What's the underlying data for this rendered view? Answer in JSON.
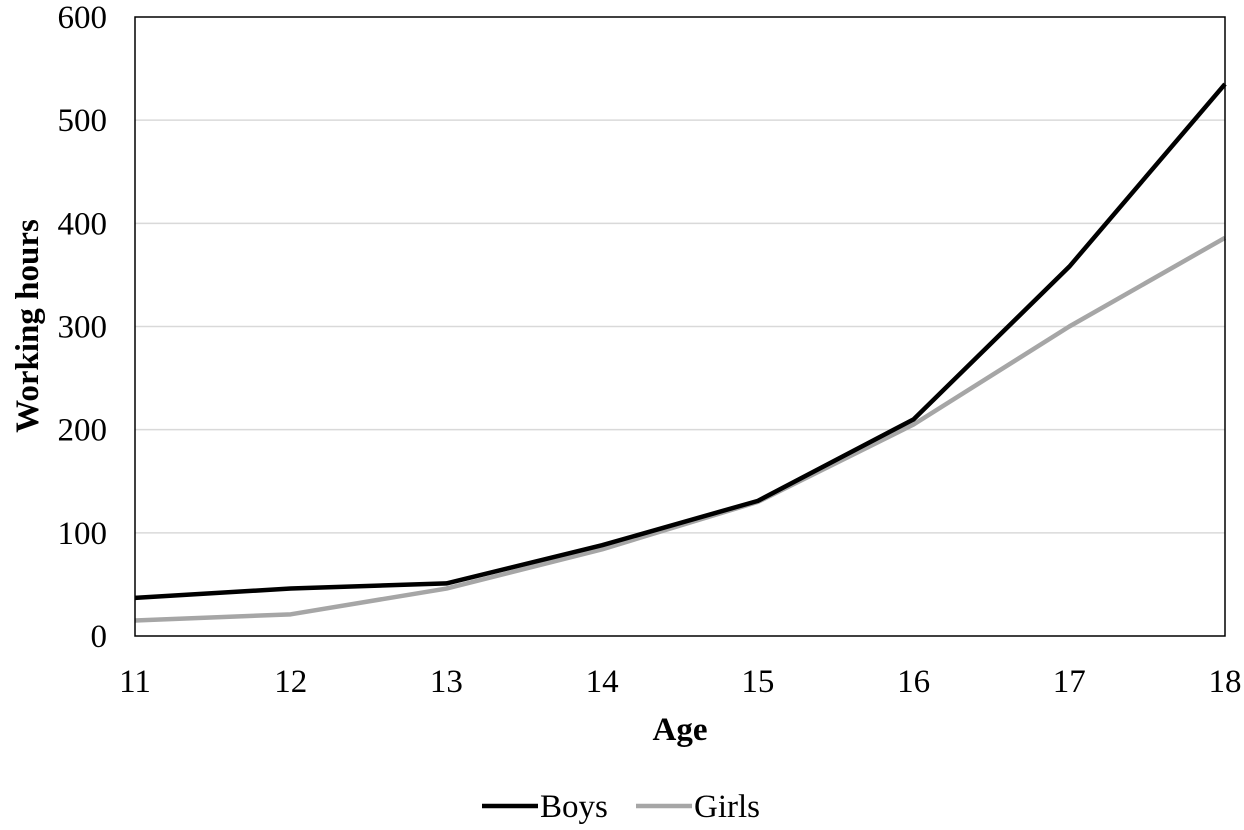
{
  "chart_data": {
    "type": "line",
    "x": [
      11,
      12,
      13,
      14,
      15,
      16,
      17,
      18
    ],
    "series": [
      {
        "name": "Boys",
        "color": "#000000",
        "values": [
          37,
          46,
          51,
          88,
          131,
          210,
          358,
          535
        ]
      },
      {
        "name": "Girls",
        "color": "#a6a6a6",
        "values": [
          15,
          21,
          46,
          84,
          130,
          205,
          300,
          386
        ]
      }
    ],
    "title": "",
    "xlabel": "Age",
    "ylabel": "Working hours",
    "xlim": [
      11,
      18
    ],
    "ylim": [
      0,
      600
    ],
    "yticks": [
      0,
      100,
      200,
      300,
      400,
      500,
      600
    ],
    "xticks": [
      11,
      12,
      13,
      14,
      15,
      16,
      17,
      18
    ],
    "grid": "horizontal",
    "legend_position": "bottom"
  }
}
